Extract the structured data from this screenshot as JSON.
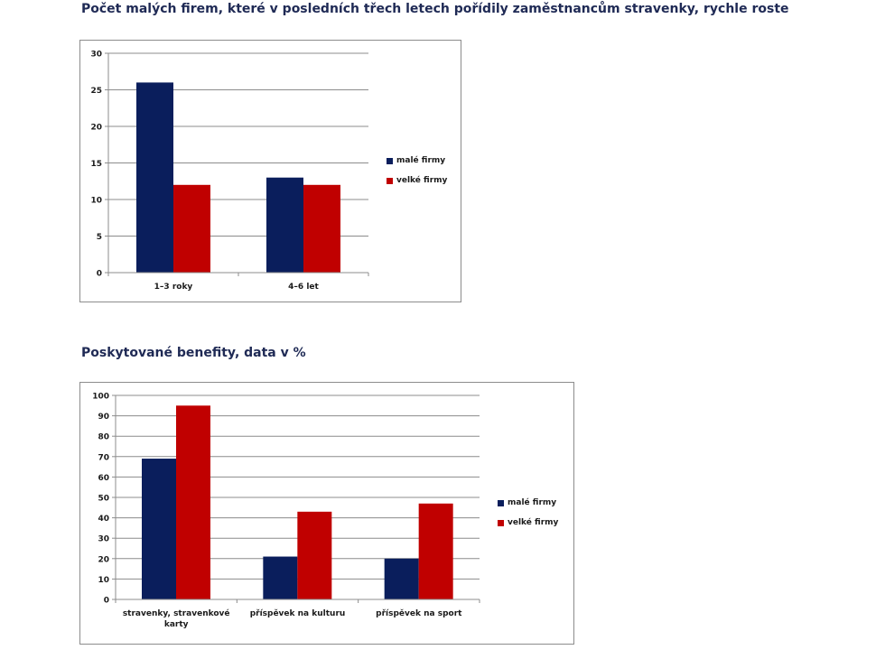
{
  "headings": {
    "chart1": "Počet malých firem, které v posledních třech letech pořídily zaměstnancům stravenky, rychle roste",
    "chart2": "Poskytované benefity, data v %"
  },
  "colors": {
    "male_firmy": "#0a1e5c",
    "velke_firmy": "#c00000",
    "grid": "#8c8c8c",
    "axis": "#8c8c8c"
  },
  "chart_data": [
    {
      "type": "bar",
      "title": "Počet malých firem, které v posledních třech letech pořídily zaměstnancům stravenky, rychle roste",
      "categories": [
        "1–3 roky",
        "4–6 let"
      ],
      "series": [
        {
          "name": "malé firmy",
          "values": [
            26,
            13
          ]
        },
        {
          "name": "velké firmy",
          "values": [
            12,
            12
          ]
        }
      ],
      "ylim": [
        0,
        30
      ],
      "yticks": [
        0,
        5,
        10,
        15,
        20,
        25,
        30
      ],
      "grid": true,
      "legend": "right"
    },
    {
      "type": "bar",
      "title": "Poskytované benefity, data v %",
      "categories": [
        [
          "stravenky, stravenkové",
          "karty"
        ],
        [
          "příspěvek na kulturu"
        ],
        [
          "příspěvek na sport"
        ]
      ],
      "series": [
        {
          "name": "malé firmy",
          "values": [
            69,
            21,
            20
          ]
        },
        {
          "name": "velké firmy",
          "values": [
            95,
            43,
            47
          ]
        }
      ],
      "ylim": [
        0,
        100
      ],
      "yticks": [
        0,
        10,
        20,
        30,
        40,
        50,
        60,
        70,
        80,
        90,
        100
      ],
      "grid": true,
      "legend": "right"
    }
  ]
}
